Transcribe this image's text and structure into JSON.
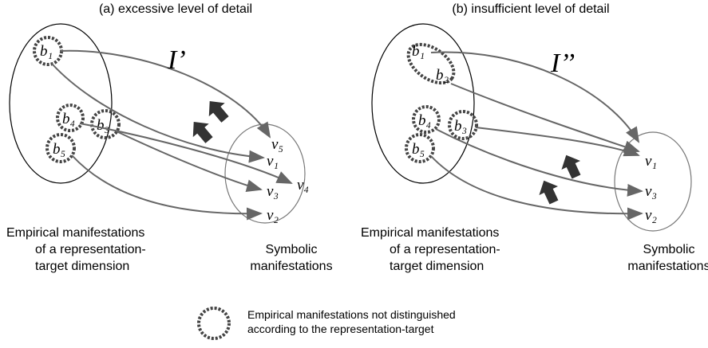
{
  "panels": [
    {
      "title": "(a) excessive level of detail",
      "mapping": "I’",
      "empirical": [
        "b₁",
        "b₄",
        "b₃",
        "b₅"
      ],
      "symbolic": [
        "v₅",
        "v₁",
        "v₄",
        "v₃",
        "v₂"
      ],
      "empirical_caption": [
        "Empirical manifestations",
        "of a representation-",
        "target dimension"
      ],
      "symbolic_caption": [
        "Symbolic",
        "manifestations"
      ]
    },
    {
      "title": "(b) insufficient level of detail",
      "mapping": "I’’",
      "empirical": [
        "b₁",
        "b₂",
        "b₄",
        "b₃",
        "b₅"
      ],
      "symbolic": [
        "v₁",
        "v₃",
        "v₂"
      ],
      "empirical_caption": [
        "Empirical manifestations",
        "of a representation-",
        "target dimension"
      ],
      "symbolic_caption": [
        "Symbolic",
        "manifestations"
      ]
    }
  ],
  "legend": [
    "Empirical manifestations not distinguished",
    "according to the representation-target"
  ]
}
